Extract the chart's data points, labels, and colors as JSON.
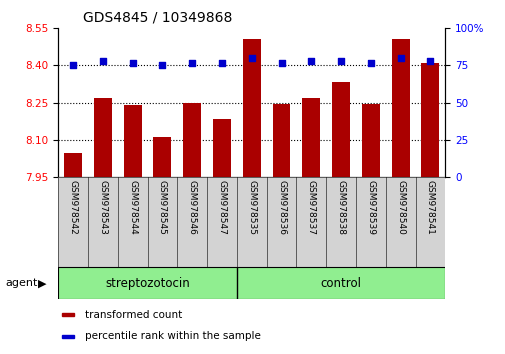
{
  "title": "GDS4845 / 10349868",
  "samples": [
    "GSM978542",
    "GSM978543",
    "GSM978544",
    "GSM978545",
    "GSM978546",
    "GSM978547",
    "GSM978535",
    "GSM978536",
    "GSM978537",
    "GSM978538",
    "GSM978539",
    "GSM978540",
    "GSM978541"
  ],
  "bar_values": [
    8.045,
    8.27,
    8.24,
    8.11,
    8.25,
    8.185,
    8.505,
    8.245,
    8.27,
    8.335,
    8.245,
    8.505,
    8.41
  ],
  "percentile_values": [
    75,
    78,
    77,
    75,
    77,
    77,
    80,
    77,
    78,
    78,
    77,
    80,
    78
  ],
  "groups": [
    {
      "label": "streptozotocin",
      "indices": [
        0,
        1,
        2,
        3,
        4,
        5
      ],
      "color": "#90EE90"
    },
    {
      "label": "control",
      "indices": [
        6,
        7,
        8,
        9,
        10,
        11,
        12
      ],
      "color": "#90EE90"
    }
  ],
  "ylim_left": [
    7.95,
    8.55
  ],
  "ylim_right": [
    0,
    100
  ],
  "yticks_left": [
    7.95,
    8.1,
    8.25,
    8.4,
    8.55
  ],
  "yticks_right": [
    0,
    25,
    50,
    75,
    100
  ],
  "bar_color": "#AA0000",
  "percentile_color": "#0000CC",
  "grid_lines": [
    8.1,
    8.25,
    8.4
  ],
  "legend_items": [
    {
      "label": "transformed count",
      "color": "#AA0000"
    },
    {
      "label": "percentile rank within the sample",
      "color": "#0000CC"
    }
  ],
  "bar_width": 0.6,
  "title_fontsize": 10,
  "tick_fontsize": 7.5,
  "group_label_fontsize": 8.5,
  "sample_fontsize": 6.5,
  "legend_fontsize": 7.5,
  "n_strep": 6,
  "n_ctrl": 7,
  "cell_bg": "#D3D3D3"
}
